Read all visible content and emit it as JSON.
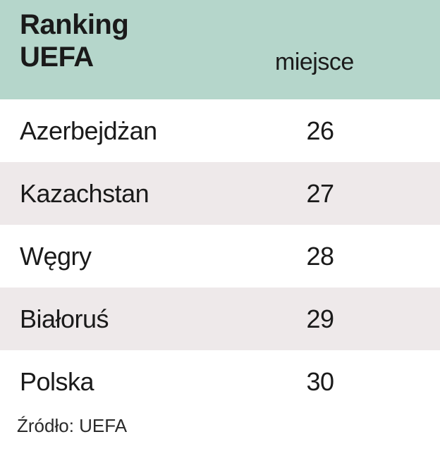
{
  "chart_data": {
    "type": "table",
    "title_lines": [
      "Ranking",
      "UEFA"
    ],
    "column_header": "miejsce",
    "rows": [
      {
        "country": "Azerbejdżan",
        "place": "26"
      },
      {
        "country": "Kazachstan",
        "place": "27"
      },
      {
        "country": "Węgry",
        "place": "28"
      },
      {
        "country": "Białoruś",
        "place": "29"
      },
      {
        "country": "Polska",
        "place": "30"
      }
    ],
    "source": "Źródło: UEFA"
  },
  "colors": {
    "header_bg": "#b5d6cb",
    "row_alt_bg": "#eee9ea",
    "row_bg": "#ffffff"
  }
}
